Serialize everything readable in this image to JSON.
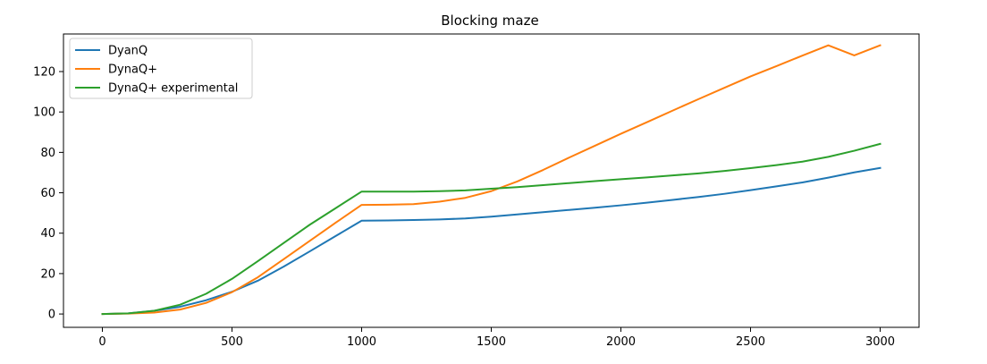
{
  "chart_data": {
    "type": "line",
    "title": "Blocking maze",
    "xlabel": "",
    "ylabel": "",
    "xlim": [
      -150,
      3150
    ],
    "ylim": [
      -6.6,
      138.6
    ],
    "xticks": [
      0,
      500,
      1000,
      1500,
      2000,
      2500,
      3000
    ],
    "yticks": [
      0,
      20,
      40,
      60,
      80,
      100,
      120
    ],
    "grid": false,
    "legend_position": "upper left",
    "series": [
      {
        "name": "DyanQ",
        "color": "#1f77b4",
        "x": [
          0,
          100,
          200,
          300,
          400,
          500,
          600,
          700,
          800,
          900,
          1000,
          1100,
          1200,
          1300,
          1400,
          1500,
          1600,
          1700,
          1800,
          1900,
          2000,
          2100,
          2200,
          2300,
          2400,
          2500,
          2600,
          2700,
          2800,
          2900,
          3000
        ],
        "y": [
          0,
          0.3,
          1.6,
          3.6,
          6.8,
          11,
          16.5,
          23.5,
          31,
          38.6,
          46.2,
          46.3,
          46.5,
          46.8,
          47.3,
          48.2,
          49.3,
          50.4,
          51.5,
          52.6,
          53.8,
          55.1,
          56.5,
          57.9,
          59.5,
          61.3,
          63.2,
          65.1,
          67.5,
          70.1,
          72.3
        ]
      },
      {
        "name": "DynaQ+",
        "color": "#ff7f0e",
        "x": [
          0,
          100,
          200,
          300,
          400,
          500,
          600,
          700,
          800,
          900,
          1000,
          1100,
          1200,
          1300,
          1400,
          1500,
          1600,
          1700,
          1800,
          1900,
          2000,
          2100,
          2200,
          2300,
          2400,
          2500,
          2600,
          2700,
          2800,
          2900,
          3000
        ],
        "y": [
          0,
          0.2,
          0.7,
          2.2,
          5.5,
          10.8,
          18.2,
          27.2,
          36.2,
          45.2,
          54,
          54.1,
          54.4,
          55.6,
          57.5,
          60.8,
          65.6,
          71.3,
          77.4,
          83.3,
          89.2,
          94.9,
          100.7,
          106.4,
          112,
          117.6,
          122.7,
          127.9,
          133,
          128,
          133
        ]
      },
      {
        "name": "DynaQ+ experimental",
        "color": "#2ca02c",
        "x": [
          0,
          100,
          200,
          300,
          400,
          500,
          600,
          700,
          800,
          900,
          1000,
          1100,
          1200,
          1300,
          1400,
          1500,
          1600,
          1700,
          1800,
          1900,
          2000,
          2100,
          2200,
          2300,
          2400,
          2500,
          2600,
          2700,
          2800,
          2900,
          3000
        ],
        "y": [
          0,
          0.3,
          1.6,
          4.6,
          10,
          17.4,
          26.2,
          35.2,
          44.2,
          52.4,
          60.6,
          60.6,
          60.6,
          60.8,
          61.2,
          62,
          62.8,
          63.8,
          64.8,
          65.8,
          66.7,
          67.6,
          68.6,
          69.6,
          70.8,
          72.2,
          73.7,
          75.4,
          77.8,
          80.8,
          84.2
        ]
      }
    ]
  }
}
